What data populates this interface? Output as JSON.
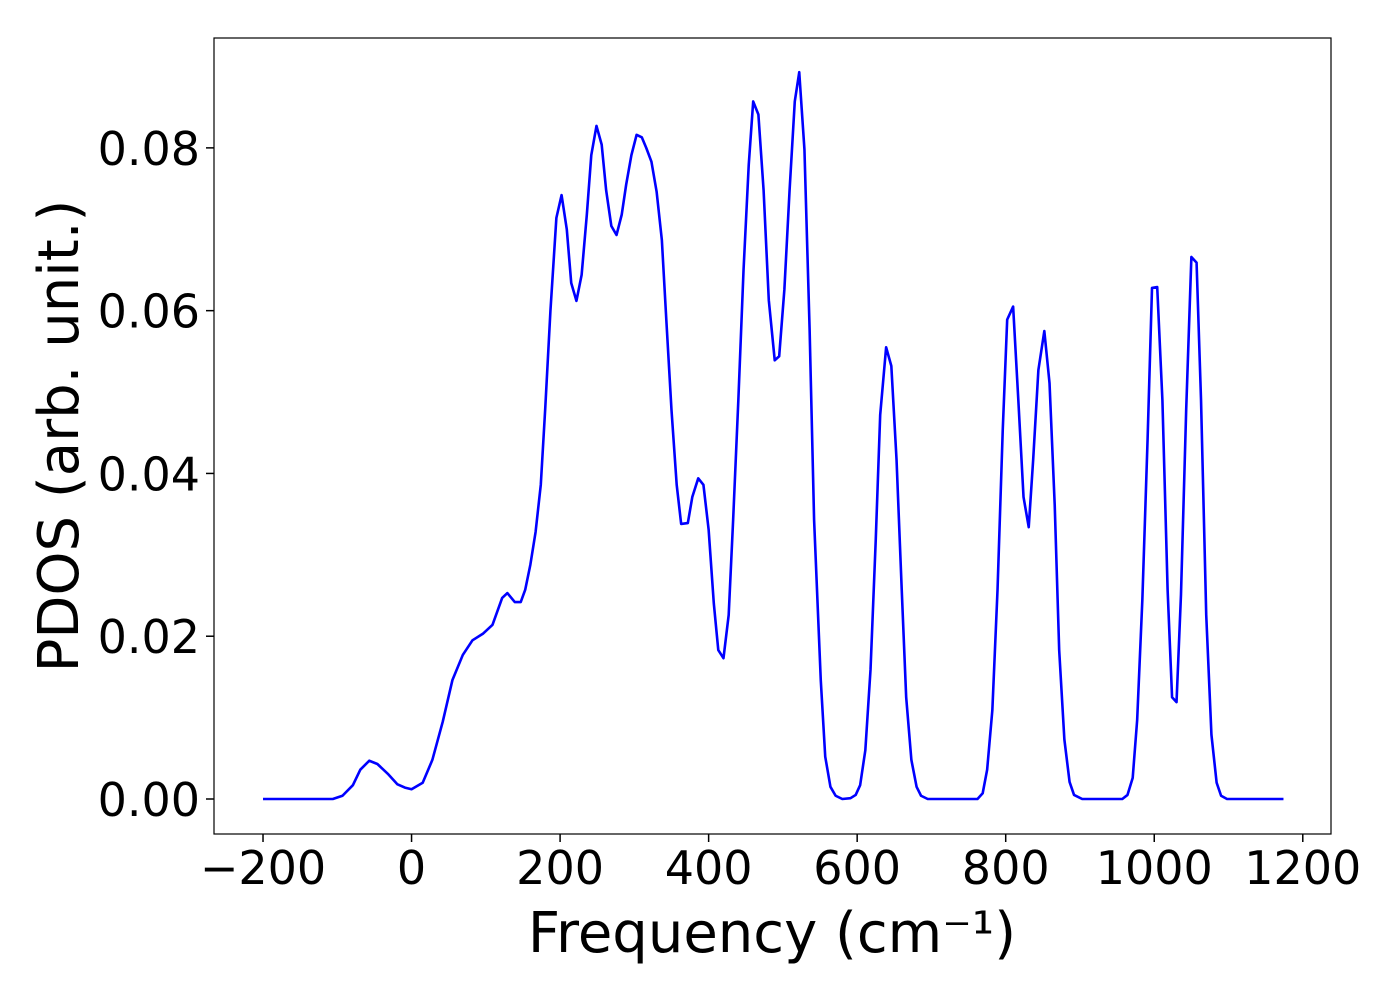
{
  "chart_data": {
    "type": "line",
    "x_label": "Frequency (cm⁻¹)",
    "y_label": "PDOS (arb. unit.)",
    "xlim": [
      -266,
      1238
    ],
    "ylim": [
      -0.0043,
      0.0935
    ],
    "xticks": [
      {
        "value": -200,
        "label": "−200"
      },
      0,
      200,
      400,
      600,
      800,
      1000,
      1200
    ],
    "yticks": [
      {
        "value": 0,
        "label": "0.00"
      },
      {
        "value": 0.02,
        "label": "0.02"
      },
      {
        "value": 0.04,
        "label": "0.04"
      },
      {
        "value": 0.06,
        "label": "0.06"
      },
      {
        "value": 0.08,
        "label": "0.08"
      }
    ],
    "grid": false,
    "series": [
      {
        "color": "#0000ff",
        "x": [
          -200,
          -106,
          -93,
          -79,
          -69,
          -57,
          -46,
          -32,
          -19,
          -9,
          0,
          15,
          28,
          42,
          55,
          69,
          82,
          96,
          109,
          122,
          129,
          139,
          147,
          153,
          160,
          167,
          174,
          180,
          187,
          195,
          202,
          209,
          215,
          222,
          229,
          236,
          242,
          249,
          256,
          262,
          269,
          276,
          283,
          289,
          296,
          303,
          310,
          316,
          323,
          330,
          337,
          343,
          350,
          357,
          363,
          372,
          378,
          386,
          393,
          400,
          407,
          413,
          420,
          427,
          433,
          440,
          447,
          454,
          460,
          467,
          474,
          481,
          489,
          495,
          502,
          509,
          516,
          522,
          529,
          536,
          542,
          551,
          557,
          564,
          571,
          580,
          591,
          598,
          604,
          611,
          618,
          625,
          631,
          639,
          646,
          653,
          660,
          666,
          673,
          680,
          686,
          695,
          762,
          769,
          775,
          782,
          789,
          796,
          802,
          810,
          817,
          824,
          831,
          837,
          844,
          852,
          859,
          866,
          872,
          879,
          886,
          892,
          903,
          957,
          964,
          971,
          977,
          984,
          991,
          997,
          1004,
          1011,
          1018,
          1024,
          1030,
          1036,
          1043,
          1050,
          1057,
          1063,
          1070,
          1077,
          1084,
          1090,
          1098,
          1174
        ],
        "values": [
          0,
          0,
          0.0004,
          0.0017,
          0.0036,
          0.0047,
          0.0043,
          0.0031,
          0.0018,
          0.0014,
          0.0012,
          0.002,
          0.0048,
          0.0095,
          0.0146,
          0.0177,
          0.0195,
          0.0203,
          0.0214,
          0.0247,
          0.0253,
          0.0242,
          0.0242,
          0.0257,
          0.0288,
          0.0328,
          0.0386,
          0.048,
          0.06,
          0.0714,
          0.0742,
          0.07,
          0.0634,
          0.0612,
          0.0644,
          0.0718,
          0.0791,
          0.0827,
          0.0804,
          0.0748,
          0.0704,
          0.0693,
          0.0718,
          0.0755,
          0.0791,
          0.0816,
          0.0813,
          0.08,
          0.0783,
          0.0746,
          0.0687,
          0.0589,
          0.0478,
          0.0386,
          0.0338,
          0.0339,
          0.0371,
          0.0394,
          0.0386,
          0.0331,
          0.024,
          0.0183,
          0.0173,
          0.0226,
          0.0343,
          0.049,
          0.065,
          0.0779,
          0.0857,
          0.0841,
          0.0748,
          0.0613,
          0.0539,
          0.0544,
          0.0626,
          0.0748,
          0.0857,
          0.0893,
          0.0798,
          0.0576,
          0.0343,
          0.0146,
          0.0052,
          0.0015,
          0.0004,
          0,
          0.0001,
          0.0005,
          0.0017,
          0.006,
          0.0159,
          0.0318,
          0.0472,
          0.0555,
          0.0532,
          0.0417,
          0.0257,
          0.0125,
          0.0048,
          0.0015,
          0.0004,
          0,
          0,
          0.0007,
          0.0036,
          0.0109,
          0.0257,
          0.0453,
          0.0589,
          0.0605,
          0.049,
          0.0371,
          0.0334,
          0.0417,
          0.0527,
          0.0575,
          0.0511,
          0.0361,
          0.0183,
          0.0073,
          0.0021,
          0.0005,
          0,
          0,
          0.0005,
          0.0026,
          0.0097,
          0.0245,
          0.0441,
          0.0628,
          0.0629,
          0.049,
          0.0257,
          0.0125,
          0.0119,
          0.0251,
          0.0478,
          0.0666,
          0.0659,
          0.049,
          0.0226,
          0.0079,
          0.002,
          0.0004,
          0,
          0
        ]
      }
    ]
  }
}
